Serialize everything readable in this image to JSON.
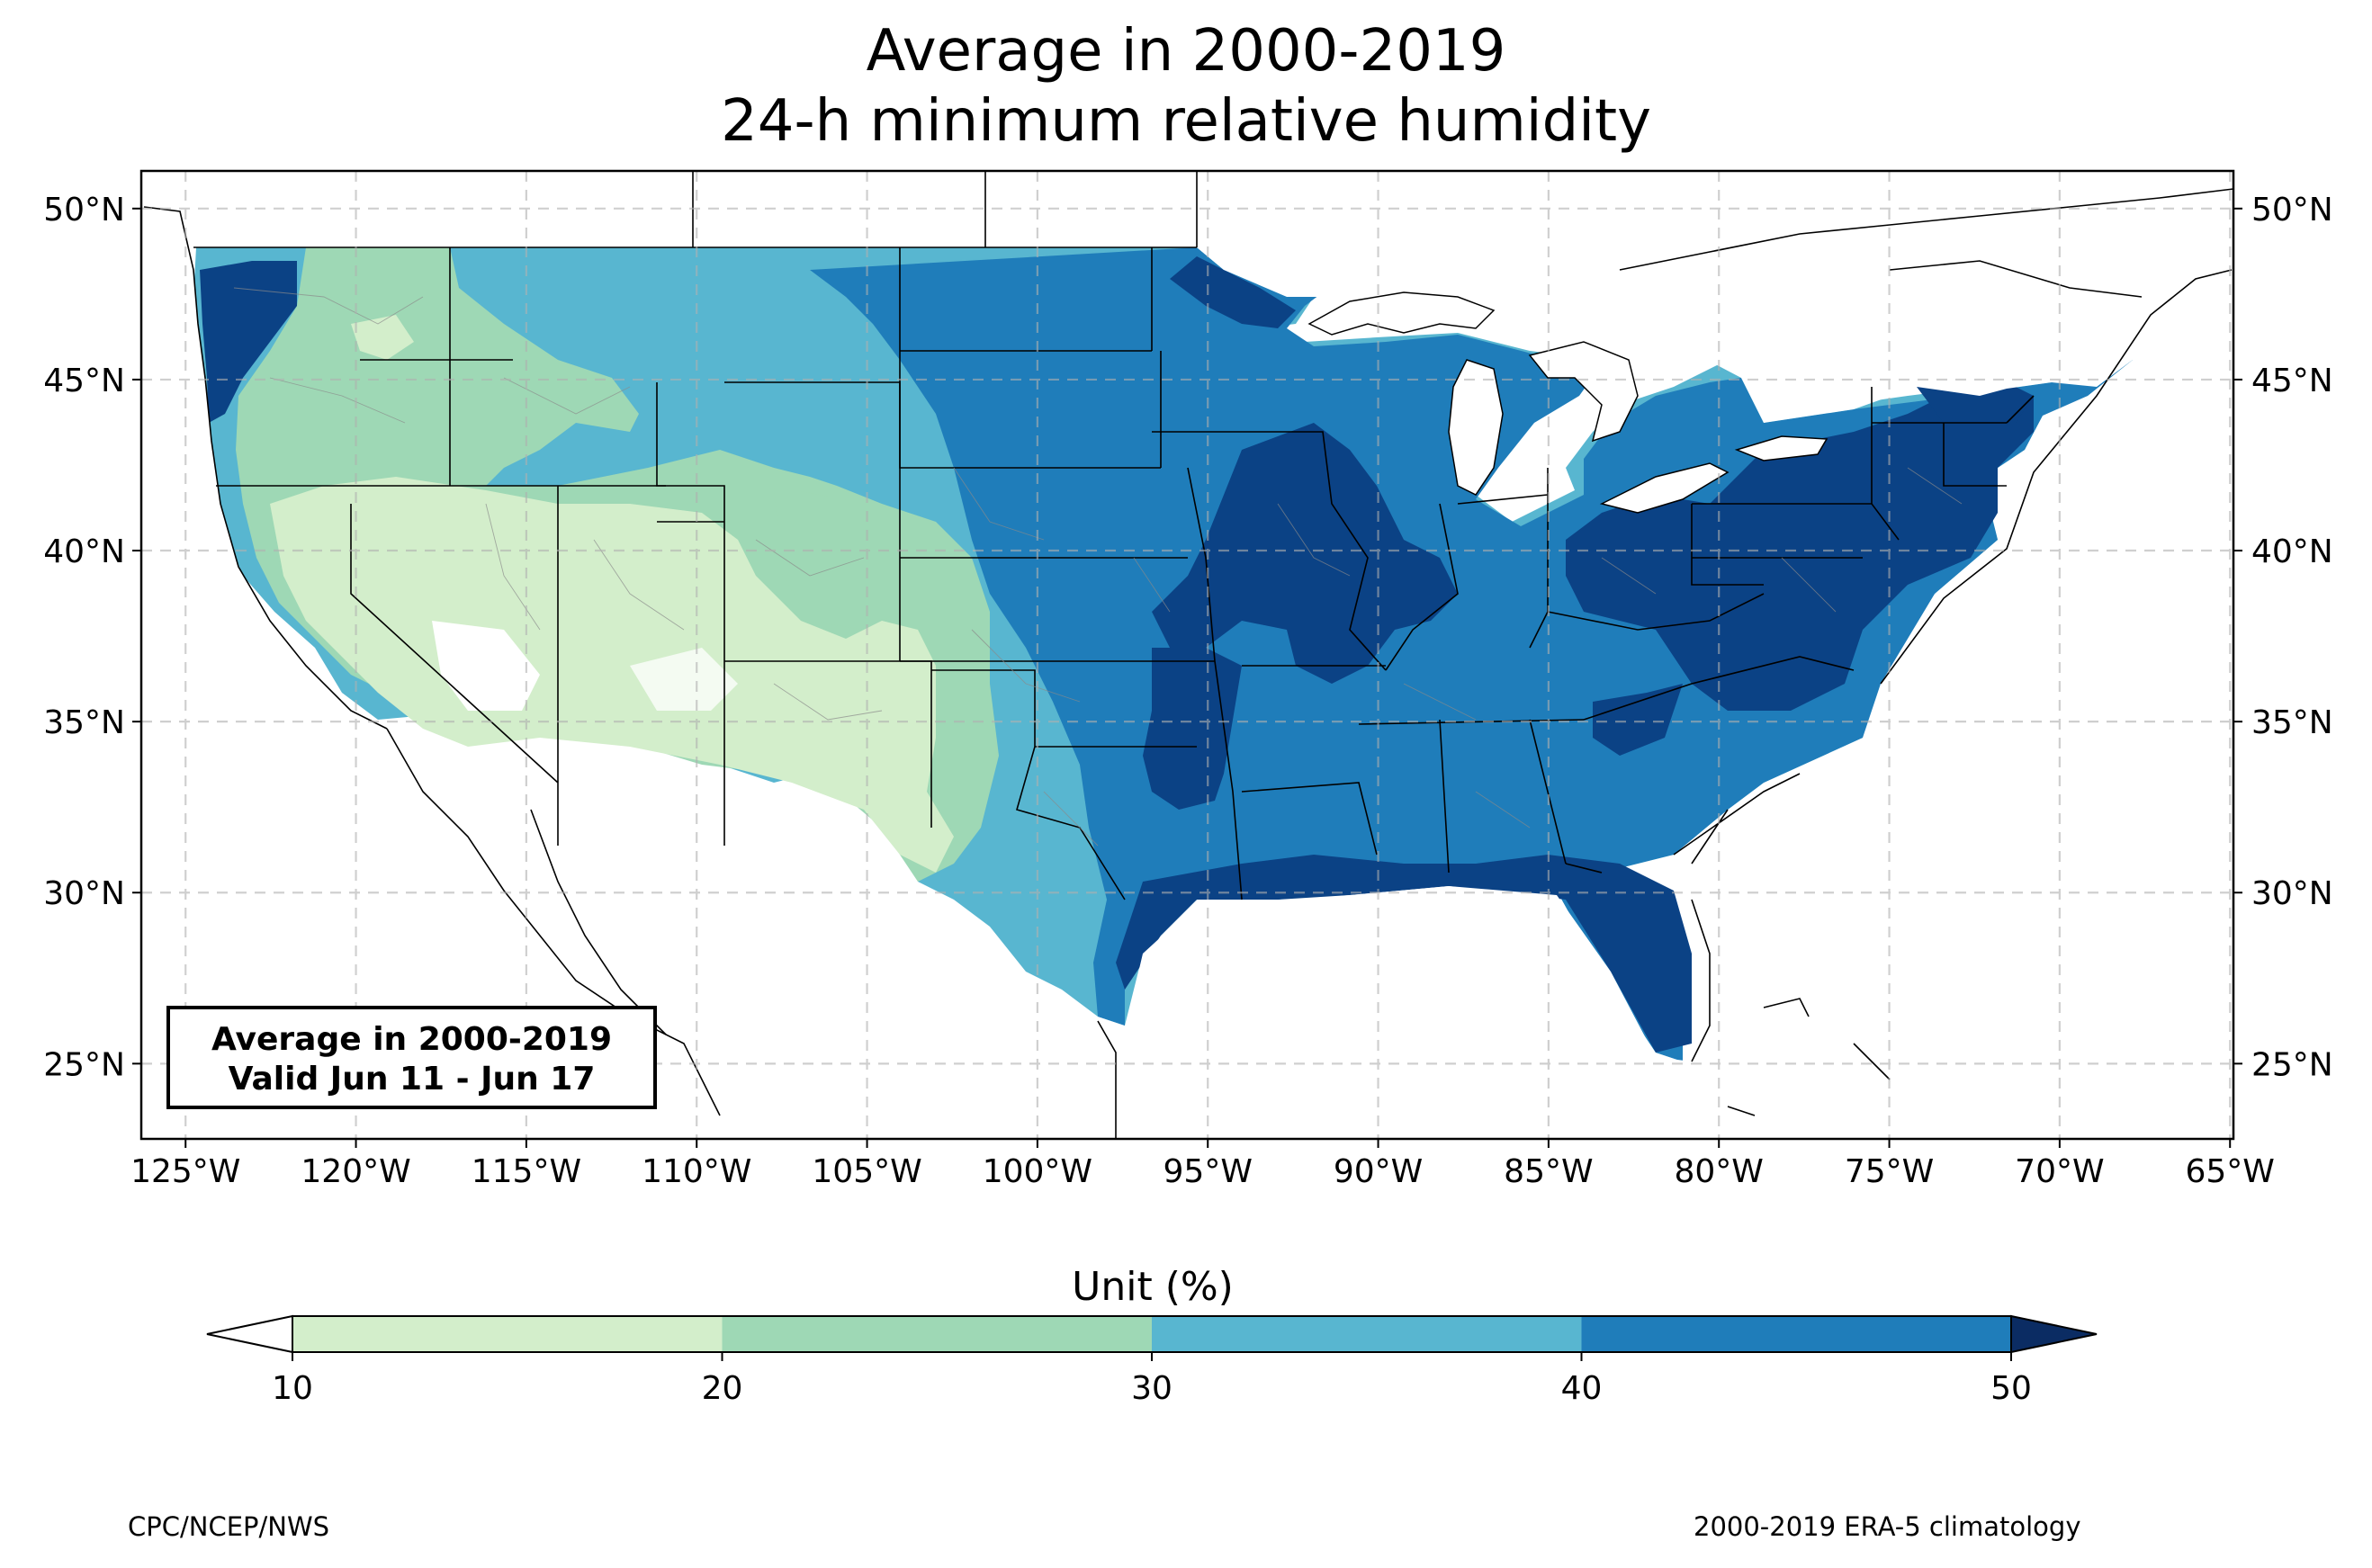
{
  "title": {
    "line1": "Average in 2000-2019",
    "line2": "24-h minimum relative humidity"
  },
  "map": {
    "extent": {
      "lon": [
        -126.3,
        -64.9
      ],
      "lat": [
        22.8,
        51.1
      ]
    },
    "lon_ticks": [
      {
        "value": -125,
        "label": "125°W"
      },
      {
        "value": -120,
        "label": "120°W"
      },
      {
        "value": -115,
        "label": "115°W"
      },
      {
        "value": -110,
        "label": "110°W"
      },
      {
        "value": -105,
        "label": "105°W"
      },
      {
        "value": -100,
        "label": "100°W"
      },
      {
        "value": -95,
        "label": "95°W"
      },
      {
        "value": -90,
        "label": "90°W"
      },
      {
        "value": -85,
        "label": "85°W"
      },
      {
        "value": -80,
        "label": "80°W"
      },
      {
        "value": -75,
        "label": "75°W"
      },
      {
        "value": -70,
        "label": "70°W"
      },
      {
        "value": -65,
        "label": "65°W"
      }
    ],
    "lat_ticks": [
      {
        "value": 50,
        "label": "50°N"
      },
      {
        "value": 45,
        "label": "45°N"
      },
      {
        "value": 40,
        "label": "40°N"
      },
      {
        "value": 35,
        "label": "35°N"
      },
      {
        "value": 30,
        "label": "30°N"
      },
      {
        "value": 25,
        "label": "25°N"
      }
    ],
    "gridlines": "dashed",
    "colors": {
      "lt_20": "#d3eecb",
      "20_30": "#9ed8b5",
      "30_40": "#58b6d0",
      "40_50": "#1f7dba",
      "gt_50": "#0b4285",
      "below_10": "#ffffff"
    }
  },
  "info_box": {
    "line1": "Average in 2000-2019",
    "line2": "Valid Jun 11 - Jun 17"
  },
  "colorbar": {
    "title": "Unit (%)",
    "ticks": [
      "10",
      "20",
      "30",
      "40",
      "50"
    ],
    "colors": [
      "#d3eecb",
      "#9ed8b5",
      "#58b6d0",
      "#1f7dba"
    ],
    "under_color": "#ffffff",
    "over_color": "#0b2c63"
  },
  "credits": {
    "left": "CPC/NCEP/NWS",
    "right": "2000-2019 ERA-5 climatology"
  }
}
